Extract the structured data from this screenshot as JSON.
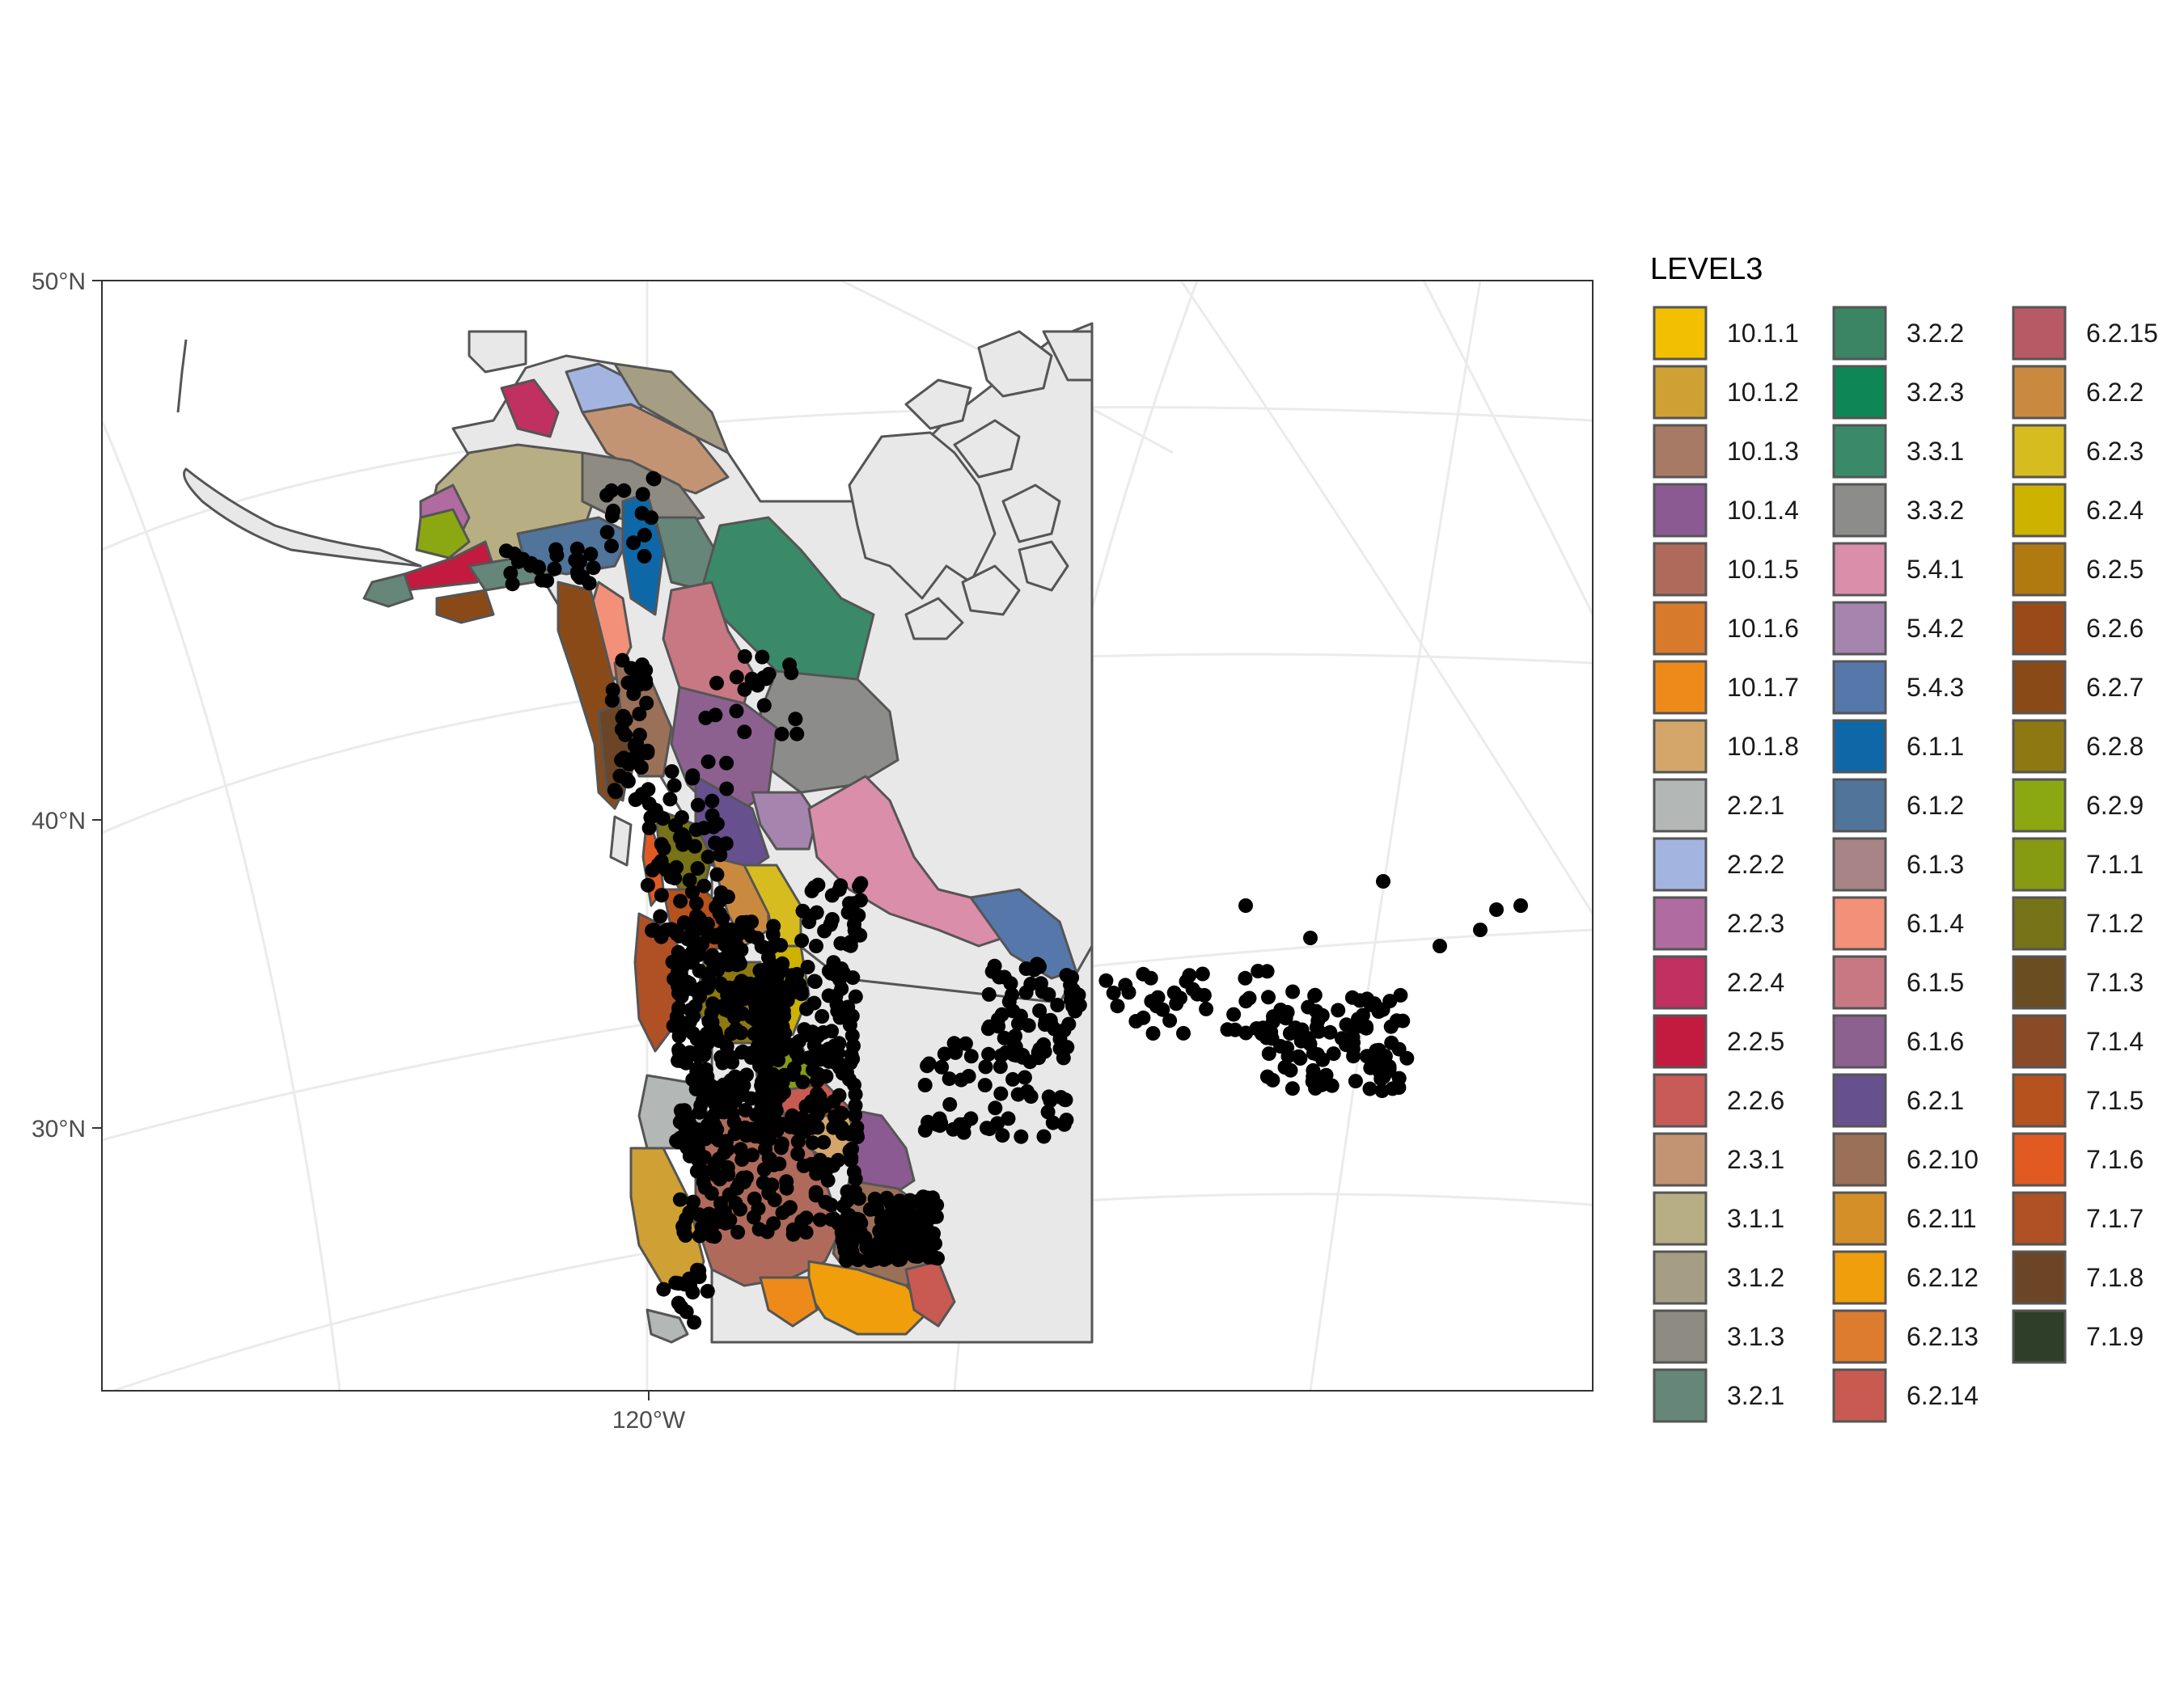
{
  "map": {
    "axes": {
      "y_ticks": [
        "50°N",
        "40°N",
        "30°N"
      ],
      "x_ticks": [
        "120°W"
      ]
    },
    "colors": {
      "panel_background": "#ffffff",
      "graticule": "#ebebeb",
      "land": "#e8e8e8",
      "outline": "#555555",
      "points": "#000000"
    },
    "legend": {
      "title": "LEVEL3",
      "items": [
        {
          "label": "10.1.1",
          "color": "#F2C000"
        },
        {
          "label": "10.1.2",
          "color": "#CFA033"
        },
        {
          "label": "10.1.3",
          "color": "#A77A65"
        },
        {
          "label": "10.1.4",
          "color": "#8B5A92"
        },
        {
          "label": "10.1.5",
          "color": "#B06A5B"
        },
        {
          "label": "10.1.6",
          "color": "#D77A2B"
        },
        {
          "label": "10.1.7",
          "color": "#EE8A1A"
        },
        {
          "label": "10.1.8",
          "color": "#D4A66A"
        },
        {
          "label": "2.2.1",
          "color": "#B3B7B6"
        },
        {
          "label": "2.2.2",
          "color": "#A3B4E0"
        },
        {
          "label": "2.2.3",
          "color": "#B06CA0"
        },
        {
          "label": "2.2.4",
          "color": "#C03060"
        },
        {
          "label": "2.2.5",
          "color": "#C31A3F"
        },
        {
          "label": "2.2.6",
          "color": "#C85A58"
        },
        {
          "label": "2.3.1",
          "color": "#C39473"
        },
        {
          "label": "3.1.1",
          "color": "#B8AE84"
        },
        {
          "label": "3.1.2",
          "color": "#A59E84"
        },
        {
          "label": "3.1.3",
          "color": "#8E8B83"
        },
        {
          "label": "3.2.1",
          "color": "#658678"
        },
        {
          "label": "3.2.2",
          "color": "#3B8464"
        },
        {
          "label": "3.2.3",
          "color": "#0E8755"
        },
        {
          "label": "3.3.1",
          "color": "#3A8A6A"
        },
        {
          "label": "3.3.2",
          "color": "#8C8C8A"
        },
        {
          "label": "5.4.1",
          "color": "#DB8EA9"
        },
        {
          "label": "5.4.2",
          "color": "#A584AE"
        },
        {
          "label": "5.4.3",
          "color": "#5677AA"
        },
        {
          "label": "6.1.1",
          "color": "#0E68A8"
        },
        {
          "label": "6.1.2",
          "color": "#50749A"
        },
        {
          "label": "6.1.3",
          "color": "#A88487"
        },
        {
          "label": "6.1.4",
          "color": "#F2907A"
        },
        {
          "label": "6.1.5",
          "color": "#C87882"
        },
        {
          "label": "6.1.6",
          "color": "#8C6190"
        },
        {
          "label": "6.2.1",
          "color": "#67508E"
        },
        {
          "label": "6.2.10",
          "color": "#9B7058"
        },
        {
          "label": "6.2.11",
          "color": "#D48F28"
        },
        {
          "label": "6.2.12",
          "color": "#F09E0C"
        },
        {
          "label": "6.2.13",
          "color": "#DD7B2E"
        },
        {
          "label": "6.2.14",
          "color": "#C85A52"
        },
        {
          "label": "6.2.15",
          "color": "#B85A65"
        },
        {
          "label": "6.2.2",
          "color": "#C98A40"
        },
        {
          "label": "6.2.3",
          "color": "#D6BC1F"
        },
        {
          "label": "6.2.4",
          "color": "#CDB300"
        },
        {
          "label": "6.2.5",
          "color": "#B07A10"
        },
        {
          "label": "6.2.6",
          "color": "#9A4A18"
        },
        {
          "label": "6.2.7",
          "color": "#8A4A18"
        },
        {
          "label": "6.2.8",
          "color": "#8E7812"
        },
        {
          "label": "6.2.9",
          "color": "#8BA812"
        },
        {
          "label": "7.1.1",
          "color": "#869A12"
        },
        {
          "label": "7.1.2",
          "color": "#767318"
        },
        {
          "label": "7.1.3",
          "color": "#6A4E22"
        },
        {
          "label": "7.1.4",
          "color": "#8B4A26"
        },
        {
          "label": "7.1.5",
          "color": "#B5521E"
        },
        {
          "label": "7.1.6",
          "color": "#E05A22"
        },
        {
          "label": "7.1.7",
          "color": "#B05025"
        },
        {
          "label": "7.1.8",
          "color": "#6B4525"
        },
        {
          "label": "7.1.9",
          "color": "#2E3E28"
        }
      ]
    }
  }
}
